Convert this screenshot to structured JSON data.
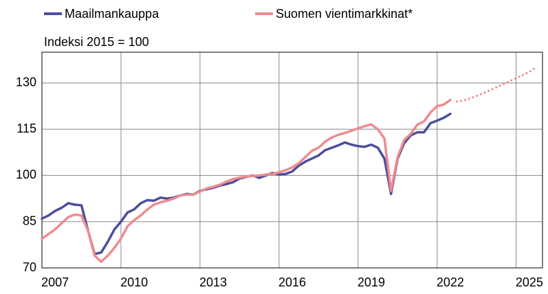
{
  "chart_data": {
    "type": "line",
    "subtitle": "Indeksi 2015 = 100",
    "x": [
      2007,
      2007.25,
      2007.5,
      2007.75,
      2008,
      2008.25,
      2008.5,
      2008.75,
      2009,
      2009.25,
      2009.5,
      2009.75,
      2010,
      2010.25,
      2010.5,
      2010.75,
      2011,
      2011.25,
      2011.5,
      2011.75,
      2012,
      2012.25,
      2012.5,
      2012.75,
      2013,
      2013.25,
      2013.5,
      2013.75,
      2014,
      2014.25,
      2014.5,
      2014.75,
      2015,
      2015.25,
      2015.5,
      2015.75,
      2016,
      2016.25,
      2016.5,
      2016.75,
      2017,
      2017.25,
      2017.5,
      2017.75,
      2018,
      2018.25,
      2018.5,
      2018.75,
      2019,
      2019.25,
      2019.5,
      2019.75,
      2020,
      2020.25,
      2020.5,
      2020.75,
      2021,
      2021.25,
      2021.5,
      2021.75,
      2022,
      2022.25,
      2022.5,
      2022.75,
      2023,
      2023.25,
      2023.5,
      2023.75,
      2024,
      2024.25,
      2024.5,
      2024.75,
      2025,
      2025.25,
      2025.5,
      2025.75
    ],
    "series": [
      {
        "name": "Maailmankauppa",
        "color": "#4b4e9c",
        "values": [
          86,
          87,
          88.5,
          89.5,
          91,
          90.5,
          90.3,
          82,
          74.5,
          75,
          78.5,
          82.5,
          85,
          88,
          89,
          91,
          92,
          91.8,
          92.8,
          92.5,
          92.8,
          93.5,
          94,
          93.8,
          95,
          95.5,
          96,
          96.7,
          97.2,
          97.8,
          99,
          99.5,
          100,
          99.2,
          100,
          100.8,
          100.3,
          100.5,
          101.3,
          103.2,
          104.5,
          105.5,
          106.5,
          108.2,
          109,
          109.8,
          110.7,
          110,
          109.5,
          109.3,
          110,
          109,
          105.5,
          94,
          105.5,
          110.5,
          113,
          114,
          114,
          117,
          117.8,
          118.7,
          120,
          null,
          null,
          null,
          null,
          null,
          null,
          null,
          null,
          null,
          null,
          null,
          null,
          null
        ]
      },
      {
        "name": "Suomen vientimarkkinat*",
        "color": "#ef8a8e",
        "forecast_start": 2022.5,
        "values": [
          79.5,
          81,
          82.5,
          84.5,
          86.5,
          87.3,
          87,
          82,
          74,
          72,
          74,
          76.5,
          79.5,
          83.5,
          85.5,
          87,
          89,
          90.5,
          91.3,
          91.8,
          92.5,
          93.5,
          93.8,
          93.8,
          94.8,
          95.8,
          96.3,
          97,
          98,
          98.8,
          99.3,
          99.6,
          99.8,
          100,
          100.3,
          100.5,
          101,
          101.7,
          102.6,
          104,
          106,
          108,
          109,
          111,
          112.3,
          113.2,
          113.8,
          114.5,
          115.3,
          116,
          116.6,
          115,
          112,
          95,
          106,
          111.5,
          113.5,
          116.5,
          117.5,
          120.5,
          122.5,
          123,
          124.5,
          124,
          124.3,
          125,
          125.8,
          126.7,
          127.6,
          128.6,
          129.6,
          130.6,
          131.6,
          132.6,
          133.6,
          135
        ]
      }
    ],
    "xlim": [
      2007,
      2026
    ],
    "xticks": [
      {
        "value": 2007.5,
        "label": "2007"
      },
      {
        "value": 2010.5,
        "label": "2010"
      },
      {
        "value": 2013.5,
        "label": "2013"
      },
      {
        "value": 2016.5,
        "label": "2016"
      },
      {
        "value": 2019.5,
        "label": "2019"
      },
      {
        "value": 2022.5,
        "label": "2022"
      },
      {
        "value": 2025.5,
        "label": "2025"
      }
    ],
    "xgrid": [
      2010,
      2013,
      2016,
      2019,
      2022,
      2025
    ],
    "ylim": [
      70,
      140
    ],
    "yticks": [
      70,
      85,
      100,
      115,
      130
    ],
    "grid": true
  }
}
